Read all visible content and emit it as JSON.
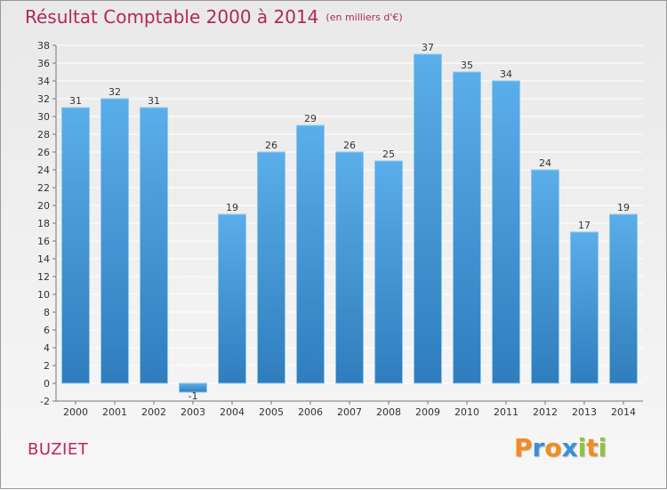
{
  "chart_data": {
    "type": "bar",
    "title": "Résultat Comptable 2000 à 2014",
    "unit": "(en milliers d'€)",
    "categories": [
      "2000",
      "2001",
      "2002",
      "2003",
      "2004",
      "2005",
      "2006",
      "2007",
      "2008",
      "2009",
      "2010",
      "2011",
      "2012",
      "2013",
      "2014"
    ],
    "values": [
      31,
      32,
      31,
      -1,
      19,
      26,
      29,
      26,
      25,
      37,
      35,
      34,
      24,
      17,
      19
    ],
    "value_labels": [
      "31",
      "32",
      "31",
      "-1",
      "19",
      "26",
      "29",
      "26",
      "25",
      "37",
      "35",
      "34",
      "24",
      "17",
      "19"
    ],
    "ylim": [
      -2,
      38
    ],
    "ytick_step": 2,
    "grid": true,
    "xlabel": "",
    "ylabel": "",
    "bar_color_light": "#5aaee9",
    "bar_color_dark": "#2f7dbd"
  },
  "commune": "BUZIET",
  "logo": {
    "letters": [
      "P",
      "r",
      "o",
      "x",
      "i",
      "t",
      "i"
    ],
    "colors": [
      "#f28c1e",
      "#3a8fd6",
      "#f28c1e",
      "#3a8fd6",
      "#8cc63f",
      "#f28c1e",
      "#8cc63f"
    ]
  }
}
